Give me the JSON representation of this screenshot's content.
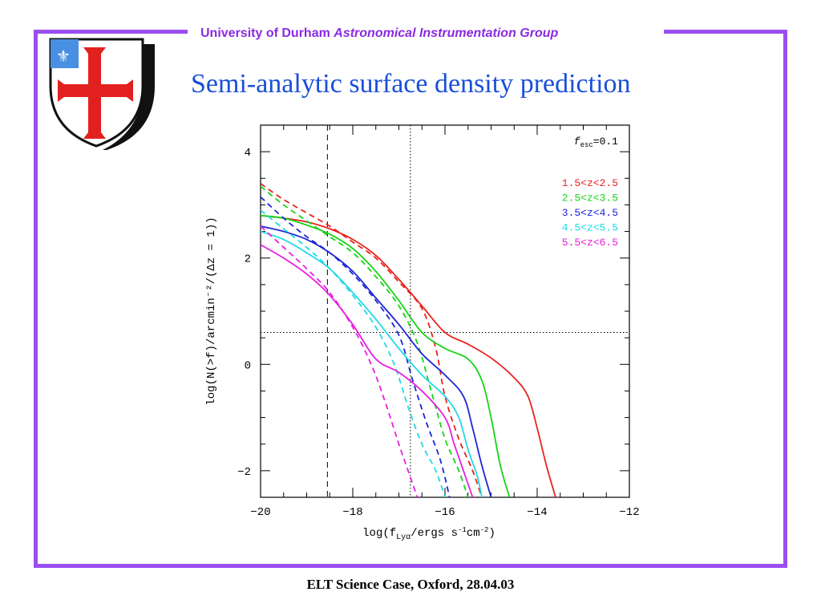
{
  "header": {
    "org": "University of Durham",
    "group": "Astronomical Instrumentation Group"
  },
  "title": "Semi-analytic surface density prediction",
  "footer": "ELT Science Case, Oxford, 28.04.03",
  "colors": {
    "frame": "#9a4ff0",
    "title": "#1a4fd8",
    "header": "#8a2be2"
  },
  "chart_data": {
    "type": "line",
    "xlabel_parts": [
      "log(f",
      "Lyα",
      "/ergs s",
      "-1",
      "cm",
      "-2",
      ")"
    ],
    "ylabel": "log(N(>f)/arcmin⁻²/(Δz = 1))",
    "xlim": [
      -20,
      -12
    ],
    "ylim": [
      -2.5,
      4.5
    ],
    "xticks": [
      -20,
      -18,
      -16,
      -14,
      -12
    ],
    "yticks": [
      -2,
      0,
      2,
      4
    ],
    "xtick_labels": [
      "−20",
      "−18",
      "−16",
      "−14",
      "−12"
    ],
    "ytick_labels": [
      "−2",
      "0",
      "2",
      "4"
    ],
    "annotation": {
      "prefix": "f",
      "sub": "esc",
      "value": "=0.1"
    },
    "reference_lines": {
      "vertical_dashed": -18.55,
      "vertical_dotted": -16.75,
      "horizontal_dotted": 0.6
    },
    "series": [
      {
        "name": "1.5<z<2.5",
        "color": "#e8231f",
        "solid": [
          [
            -20,
            2.8
          ],
          [
            -19.5,
            2.75
          ],
          [
            -19,
            2.68
          ],
          [
            -18.5,
            2.55
          ],
          [
            -18,
            2.35
          ],
          [
            -17.5,
            2.05
          ],
          [
            -17,
            1.6
          ],
          [
            -16.5,
            1.1
          ],
          [
            -16,
            0.6
          ],
          [
            -15.5,
            0.38
          ],
          [
            -15,
            0.12
          ],
          [
            -14.5,
            -0.25
          ],
          [
            -14.2,
            -0.6
          ],
          [
            -14,
            -1.2
          ],
          [
            -13.8,
            -1.9
          ],
          [
            -13.6,
            -2.5
          ]
        ],
        "dashed": [
          [
            -20,
            3.4
          ],
          [
            -19.5,
            3.1
          ],
          [
            -19,
            2.85
          ],
          [
            -18.5,
            2.6
          ],
          [
            -18,
            2.3
          ],
          [
            -17.5,
            2.0
          ],
          [
            -17,
            1.55
          ],
          [
            -16.5,
            1.05
          ],
          [
            -16.2,
            0.3
          ],
          [
            -16,
            -0.6
          ],
          [
            -15.7,
            -1.4
          ],
          [
            -15.4,
            -2.0
          ],
          [
            -15.2,
            -2.5
          ]
        ]
      },
      {
        "name": "2.5<z<3.5",
        "color": "#16d416",
        "solid": [
          [
            -20,
            2.8
          ],
          [
            -19.5,
            2.75
          ],
          [
            -19,
            2.62
          ],
          [
            -18.5,
            2.45
          ],
          [
            -18,
            2.18
          ],
          [
            -17.5,
            1.75
          ],
          [
            -17,
            1.2
          ],
          [
            -16.5,
            0.6
          ],
          [
            -16,
            0.3
          ],
          [
            -15.5,
            0.1
          ],
          [
            -15.2,
            -0.3
          ],
          [
            -15,
            -1.0
          ],
          [
            -14.8,
            -1.9
          ],
          [
            -14.6,
            -2.5
          ]
        ],
        "dashed": [
          [
            -20,
            3.35
          ],
          [
            -19.5,
            3.0
          ],
          [
            -19,
            2.7
          ],
          [
            -18.5,
            2.4
          ],
          [
            -18,
            2.1
          ],
          [
            -17.5,
            1.65
          ],
          [
            -17,
            1.1
          ],
          [
            -16.6,
            0.4
          ],
          [
            -16.3,
            -0.5
          ],
          [
            -16,
            -1.4
          ],
          [
            -15.7,
            -2.0
          ],
          [
            -15.5,
            -2.5
          ]
        ]
      },
      {
        "name": "3.5<z<4.5",
        "color": "#1c25d8",
        "solid": [
          [
            -20,
            2.6
          ],
          [
            -19.5,
            2.5
          ],
          [
            -19,
            2.35
          ],
          [
            -18.5,
            2.1
          ],
          [
            -18,
            1.75
          ],
          [
            -17.5,
            1.25
          ],
          [
            -17,
            0.75
          ],
          [
            -16.5,
            0.2
          ],
          [
            -16,
            -0.2
          ],
          [
            -15.6,
            -0.6
          ],
          [
            -15.4,
            -1.2
          ],
          [
            -15.2,
            -1.9
          ],
          [
            -15,
            -2.5
          ]
        ],
        "dashed": [
          [
            -20,
            3.15
          ],
          [
            -19.5,
            2.75
          ],
          [
            -19,
            2.4
          ],
          [
            -18.5,
            2.1
          ],
          [
            -18,
            1.7
          ],
          [
            -17.5,
            1.2
          ],
          [
            -17,
            0.55
          ],
          [
            -16.7,
            -0.3
          ],
          [
            -16.4,
            -1.1
          ],
          [
            -16.1,
            -1.8
          ],
          [
            -15.9,
            -2.5
          ]
        ]
      },
      {
        "name": "4.5<z<5.5",
        "color": "#1fd9e8",
        "solid": [
          [
            -20,
            2.5
          ],
          [
            -19.5,
            2.35
          ],
          [
            -19,
            2.1
          ],
          [
            -18.5,
            1.8
          ],
          [
            -18,
            1.35
          ],
          [
            -17.5,
            0.85
          ],
          [
            -17,
            0.3
          ],
          [
            -16.5,
            -0.2
          ],
          [
            -16,
            -0.6
          ],
          [
            -15.7,
            -1.0
          ],
          [
            -15.5,
            -1.6
          ],
          [
            -15.3,
            -2.1
          ],
          [
            -15.2,
            -2.5
          ]
        ],
        "dashed": [
          [
            -20,
            2.9
          ],
          [
            -19.5,
            2.55
          ],
          [
            -19,
            2.2
          ],
          [
            -18.5,
            1.8
          ],
          [
            -18,
            1.3
          ],
          [
            -17.5,
            0.7
          ],
          [
            -17.1,
            0.0
          ],
          [
            -16.8,
            -0.8
          ],
          [
            -16.5,
            -1.5
          ],
          [
            -16.2,
            -2.0
          ],
          [
            -16,
            -2.5
          ]
        ]
      },
      {
        "name": "5.5<z<6.5",
        "color": "#e81ee0",
        "solid": [
          [
            -20,
            2.25
          ],
          [
            -19.5,
            2.0
          ],
          [
            -19,
            1.7
          ],
          [
            -18.5,
            1.3
          ],
          [
            -18,
            0.75
          ],
          [
            -17.5,
            0.1
          ],
          [
            -17,
            -0.15
          ],
          [
            -16.5,
            -0.5
          ],
          [
            -16,
            -1.0
          ],
          [
            -15.8,
            -1.5
          ],
          [
            -15.6,
            -2.0
          ],
          [
            -15.4,
            -2.5
          ]
        ],
        "dashed": [
          [
            -20,
            2.6
          ],
          [
            -19.5,
            2.2
          ],
          [
            -19,
            1.8
          ],
          [
            -18.5,
            1.35
          ],
          [
            -18,
            0.7
          ],
          [
            -17.6,
            0.0
          ],
          [
            -17.3,
            -0.7
          ],
          [
            -17,
            -1.5
          ],
          [
            -16.8,
            -2.0
          ],
          [
            -16.6,
            -2.5
          ]
        ]
      }
    ]
  }
}
